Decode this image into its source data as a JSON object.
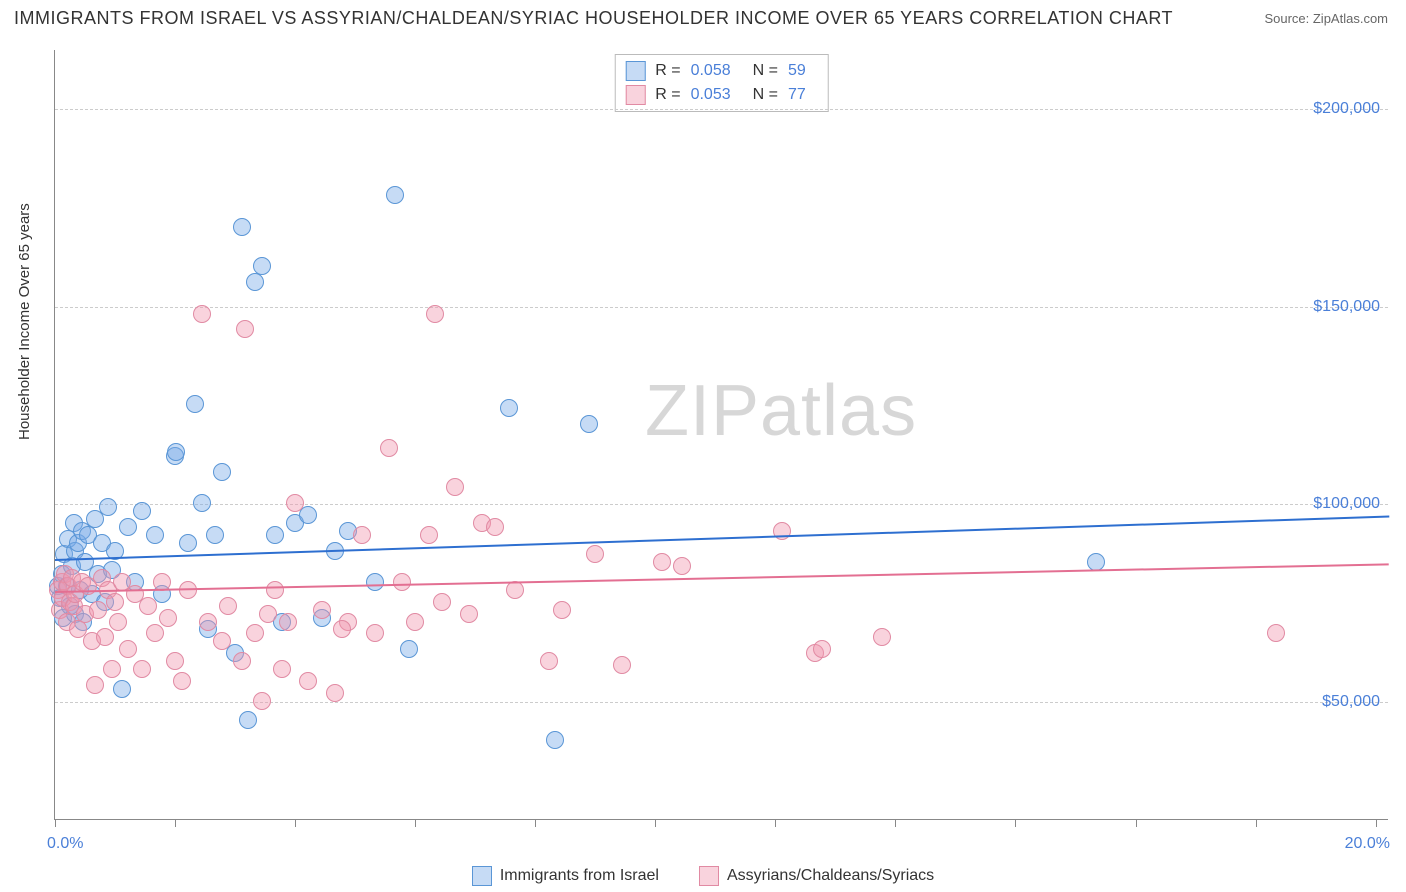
{
  "title": "IMMIGRANTS FROM ISRAEL VS ASSYRIAN/CHALDEAN/SYRIAC HOUSEHOLDER INCOME OVER 65 YEARS CORRELATION CHART",
  "source": "Source: ZipAtlas.com",
  "watermark": "ZIPatlas",
  "y_axis_label": "Householder Income Over 65 years",
  "chart": {
    "type": "scatter",
    "background": "#ffffff",
    "grid_color": "#cccccc",
    "axis_color": "#888888",
    "tick_label_color": "#4a7fd8",
    "xlim": [
      0,
      20
    ],
    "ylim": [
      20000,
      215000
    ],
    "x_ticks": [
      0,
      1.8,
      3.6,
      5.4,
      7.2,
      9.0,
      10.8,
      12.6,
      14.4,
      16.2,
      18.0,
      19.8
    ],
    "x_range_labels": {
      "min": "0.0%",
      "max": "20.0%"
    },
    "y_ticks": [
      {
        "v": 50000,
        "label": "$50,000"
      },
      {
        "v": 100000,
        "label": "$100,000"
      },
      {
        "v": 150000,
        "label": "$150,000"
      },
      {
        "v": 200000,
        "label": "$200,000"
      }
    ],
    "marker_radius": 9,
    "marker_border_width": 1.2,
    "trend_line_width": 2
  },
  "series": [
    {
      "id": "israel",
      "name": "Immigrants from Israel",
      "fill": "rgba(120,170,230,0.42)",
      "stroke": "#5a96d6",
      "line_color": "#2e6fd0",
      "r": "0.058",
      "n": "59",
      "trend": {
        "y_at_xmin": 86000,
        "y_at_xmax": 97000
      },
      "points": [
        [
          0.05,
          79000
        ],
        [
          0.08,
          76000
        ],
        [
          0.1,
          82000
        ],
        [
          0.12,
          71000
        ],
        [
          0.13,
          87000
        ],
        [
          0.18,
          79000
        ],
        [
          0.2,
          91000
        ],
        [
          0.22,
          74000
        ],
        [
          0.25,
          84000
        ],
        [
          0.28,
          95000
        ],
        [
          0.3,
          72000
        ],
        [
          0.3,
          88000
        ],
        [
          0.35,
          90000
        ],
        [
          0.38,
          78000
        ],
        [
          0.4,
          93000
        ],
        [
          0.42,
          70000
        ],
        [
          0.45,
          85000
        ],
        [
          0.5,
          92000
        ],
        [
          0.55,
          77000
        ],
        [
          0.6,
          96000
        ],
        [
          0.65,
          82000
        ],
        [
          0.7,
          90000
        ],
        [
          0.75,
          75000
        ],
        [
          0.8,
          99000
        ],
        [
          0.85,
          83000
        ],
        [
          0.9,
          88000
        ],
        [
          1.0,
          53000
        ],
        [
          1.1,
          94000
        ],
        [
          1.2,
          80000
        ],
        [
          1.3,
          98000
        ],
        [
          1.5,
          92000
        ],
        [
          1.6,
          77000
        ],
        [
          1.8,
          112000
        ],
        [
          1.82,
          113000
        ],
        [
          2.0,
          90000
        ],
        [
          2.1,
          125000
        ],
        [
          2.2,
          100000
        ],
        [
          2.3,
          68000
        ],
        [
          2.4,
          92000
        ],
        [
          2.5,
          108000
        ],
        [
          2.7,
          62000
        ],
        [
          2.8,
          170000
        ],
        [
          2.9,
          45000
        ],
        [
          3.0,
          156000
        ],
        [
          3.1,
          160000
        ],
        [
          3.3,
          92000
        ],
        [
          3.4,
          70000
        ],
        [
          3.6,
          95000
        ],
        [
          3.8,
          97000
        ],
        [
          4.0,
          71000
        ],
        [
          4.2,
          88000
        ],
        [
          4.4,
          93000
        ],
        [
          4.8,
          80000
        ],
        [
          5.1,
          178000
        ],
        [
          5.3,
          63000
        ],
        [
          6.8,
          124000
        ],
        [
          7.5,
          40000
        ],
        [
          8.0,
          120000
        ],
        [
          15.6,
          85000
        ]
      ]
    },
    {
      "id": "assyrian",
      "name": "Assyrians/Chaldeans/Syriacs",
      "fill": "rgba(240,150,175,0.42)",
      "stroke": "#e18aa3",
      "line_color": "#e36f92",
      "r": "0.053",
      "n": "77",
      "trend": {
        "y_at_xmin": 78000,
        "y_at_xmax": 85000
      },
      "points": [
        [
          0.05,
          78000
        ],
        [
          0.08,
          73000
        ],
        [
          0.1,
          80000
        ],
        [
          0.12,
          76000
        ],
        [
          0.15,
          82000
        ],
        [
          0.18,
          70000
        ],
        [
          0.2,
          79000
        ],
        [
          0.22,
          75000
        ],
        [
          0.25,
          81000
        ],
        [
          0.28,
          74000
        ],
        [
          0.3,
          77000
        ],
        [
          0.35,
          68000
        ],
        [
          0.4,
          80000
        ],
        [
          0.45,
          72000
        ],
        [
          0.5,
          79000
        ],
        [
          0.55,
          65000
        ],
        [
          0.6,
          54000
        ],
        [
          0.65,
          73000
        ],
        [
          0.7,
          81000
        ],
        [
          0.75,
          66000
        ],
        [
          0.8,
          78000
        ],
        [
          0.85,
          58000
        ],
        [
          0.9,
          75000
        ],
        [
          0.95,
          70000
        ],
        [
          1.0,
          80000
        ],
        [
          1.1,
          63000
        ],
        [
          1.2,
          77000
        ],
        [
          1.3,
          58000
        ],
        [
          1.4,
          74000
        ],
        [
          1.5,
          67000
        ],
        [
          1.6,
          80000
        ],
        [
          1.7,
          71000
        ],
        [
          1.8,
          60000
        ],
        [
          1.9,
          55000
        ],
        [
          2.0,
          78000
        ],
        [
          2.2,
          148000
        ],
        [
          2.3,
          70000
        ],
        [
          2.5,
          65000
        ],
        [
          2.6,
          74000
        ],
        [
          2.8,
          60000
        ],
        [
          2.85,
          144000
        ],
        [
          3.0,
          67000
        ],
        [
          3.1,
          50000
        ],
        [
          3.2,
          72000
        ],
        [
          3.4,
          58000
        ],
        [
          3.5,
          70000
        ],
        [
          3.6,
          100000
        ],
        [
          3.8,
          55000
        ],
        [
          4.0,
          73000
        ],
        [
          4.2,
          52000
        ],
        [
          4.4,
          70000
        ],
        [
          4.6,
          92000
        ],
        [
          4.8,
          67000
        ],
        [
          5.0,
          114000
        ],
        [
          5.2,
          80000
        ],
        [
          5.4,
          70000
        ],
        [
          5.6,
          92000
        ],
        [
          5.7,
          148000
        ],
        [
          5.8,
          75000
        ],
        [
          6.0,
          104000
        ],
        [
          6.2,
          72000
        ],
        [
          6.4,
          95000
        ],
        [
          6.6,
          94000
        ],
        [
          6.9,
          78000
        ],
        [
          7.4,
          60000
        ],
        [
          7.6,
          73000
        ],
        [
          8.1,
          87000
        ],
        [
          8.5,
          59000
        ],
        [
          9.1,
          85000
        ],
        [
          9.4,
          84000
        ],
        [
          10.9,
          93000
        ],
        [
          11.4,
          62000
        ],
        [
          11.5,
          63000
        ],
        [
          12.4,
          66000
        ],
        [
          18.3,
          67000
        ],
        [
          4.3,
          68000
        ],
        [
          3.3,
          78000
        ]
      ]
    }
  ],
  "legend_bottom": [
    {
      "series": "israel",
      "label": "Immigrants from Israel"
    },
    {
      "series": "assyrian",
      "label": "Assyrians/Chaldeans/Syriacs"
    }
  ]
}
